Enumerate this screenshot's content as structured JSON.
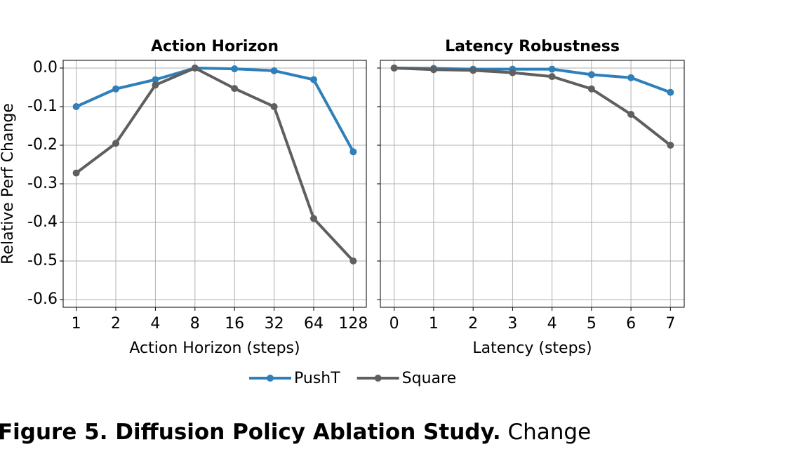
{
  "chart_data": [
    {
      "type": "line",
      "title": "Action Horizon",
      "x_label": "Action Horizon (steps)",
      "y_label": "Relative Perf Change",
      "categories": [
        "1",
        "2",
        "4",
        "8",
        "16",
        "32",
        "64",
        "128"
      ],
      "series": [
        {
          "name": "PushT",
          "color": "#2f7fba",
          "values": [
            -0.1,
            -0.054,
            -0.03,
            0.0,
            -0.002,
            -0.007,
            -0.03,
            -0.217
          ]
        },
        {
          "name": "Square",
          "color": "#5f5f5f",
          "values": [
            -0.272,
            -0.195,
            -0.044,
            0.0,
            -0.053,
            -0.1,
            -0.39,
            -0.5
          ]
        }
      ],
      "ylim": [
        -0.62,
        0.02
      ],
      "yticks": [
        {
          "value": 0,
          "label": "0.0"
        },
        -0.1,
        -0.2,
        -0.3,
        -0.4,
        -0.5,
        -0.6
      ],
      "grid": true
    },
    {
      "type": "line",
      "title": "Latency Robustness",
      "x_label": "Latency (steps)",
      "x": [
        0,
        1,
        2,
        3,
        4,
        5,
        6,
        7
      ],
      "series": [
        {
          "name": "PushT",
          "color": "#2f7fba",
          "values": [
            0.0,
            -0.001,
            -0.003,
            -0.003,
            -0.003,
            -0.017,
            -0.025,
            -0.063
          ]
        },
        {
          "name": "Square",
          "color": "#5f5f5f",
          "values": [
            0.0,
            -0.004,
            -0.006,
            -0.012,
            -0.022,
            -0.054,
            -0.12,
            -0.2
          ]
        }
      ],
      "xlim": [
        -0.35,
        7.35
      ],
      "xticks": [
        0,
        1,
        2,
        3,
        4,
        5,
        6,
        7
      ],
      "ylim": [
        -0.62,
        0.02
      ],
      "yticks": [
        0,
        -0.1,
        -0.2,
        -0.3,
        -0.4,
        -0.5,
        -0.6
      ],
      "grid": true
    }
  ],
  "caption": {
    "bold": "Figure 5.  Diffusion Policy Ablation Study.",
    "text": " Change"
  }
}
